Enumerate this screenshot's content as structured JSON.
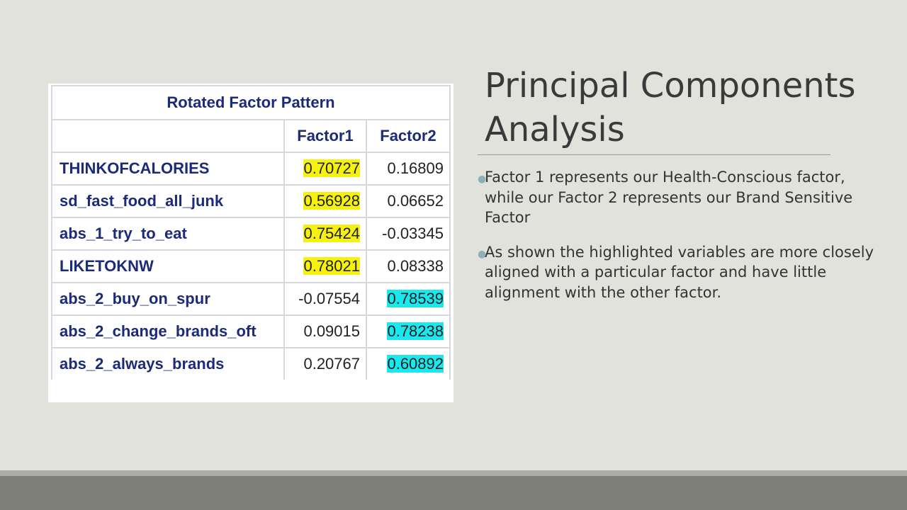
{
  "slide": {
    "title": "Principal Components Analysis",
    "bullets": [
      "Factor 1 represents our Health-Conscious factor, while our Factor 2 represents our Brand Sensitive Factor",
      "As shown the highlighted variables are more closely aligned with a particular factor and have little alignment with the other factor."
    ]
  },
  "table": {
    "caption": "Rotated Factor Pattern",
    "columns": [
      "Factor1",
      "Factor2"
    ],
    "rows": [
      {
        "label": "THINKOFCALORIES",
        "factor1": "0.70727",
        "factor2": "0.16809"
      },
      {
        "label": "sd_fast_food_all_junk",
        "factor1": "0.56928",
        "factor2": "0.06652"
      },
      {
        "label": "abs_1_try_to_eat",
        "factor1": "0.75424",
        "factor2": "-0.03345"
      },
      {
        "label": "LIKETOKNW",
        "factor1": "0.78021",
        "factor2": "0.08338"
      },
      {
        "label": "abs_2_buy_on_spur",
        "factor1": "-0.07554",
        "factor2": "0.78539"
      },
      {
        "label": "abs_2_change_brands_oft",
        "factor1": "0.09015",
        "factor2": "0.78238"
      },
      {
        "label": "abs_2_always_brands",
        "factor1": "0.20767",
        "factor2": "0.60892"
      }
    ],
    "highlight_colors": {
      "factor1": "#f6f20d",
      "factor2": "#19e8ef"
    }
  },
  "theme": {
    "background": "#e2e2dd",
    "footer": "#7f7f7a",
    "header_text": "#1c2a7a",
    "bullet_marker": "#8fb0b6"
  }
}
